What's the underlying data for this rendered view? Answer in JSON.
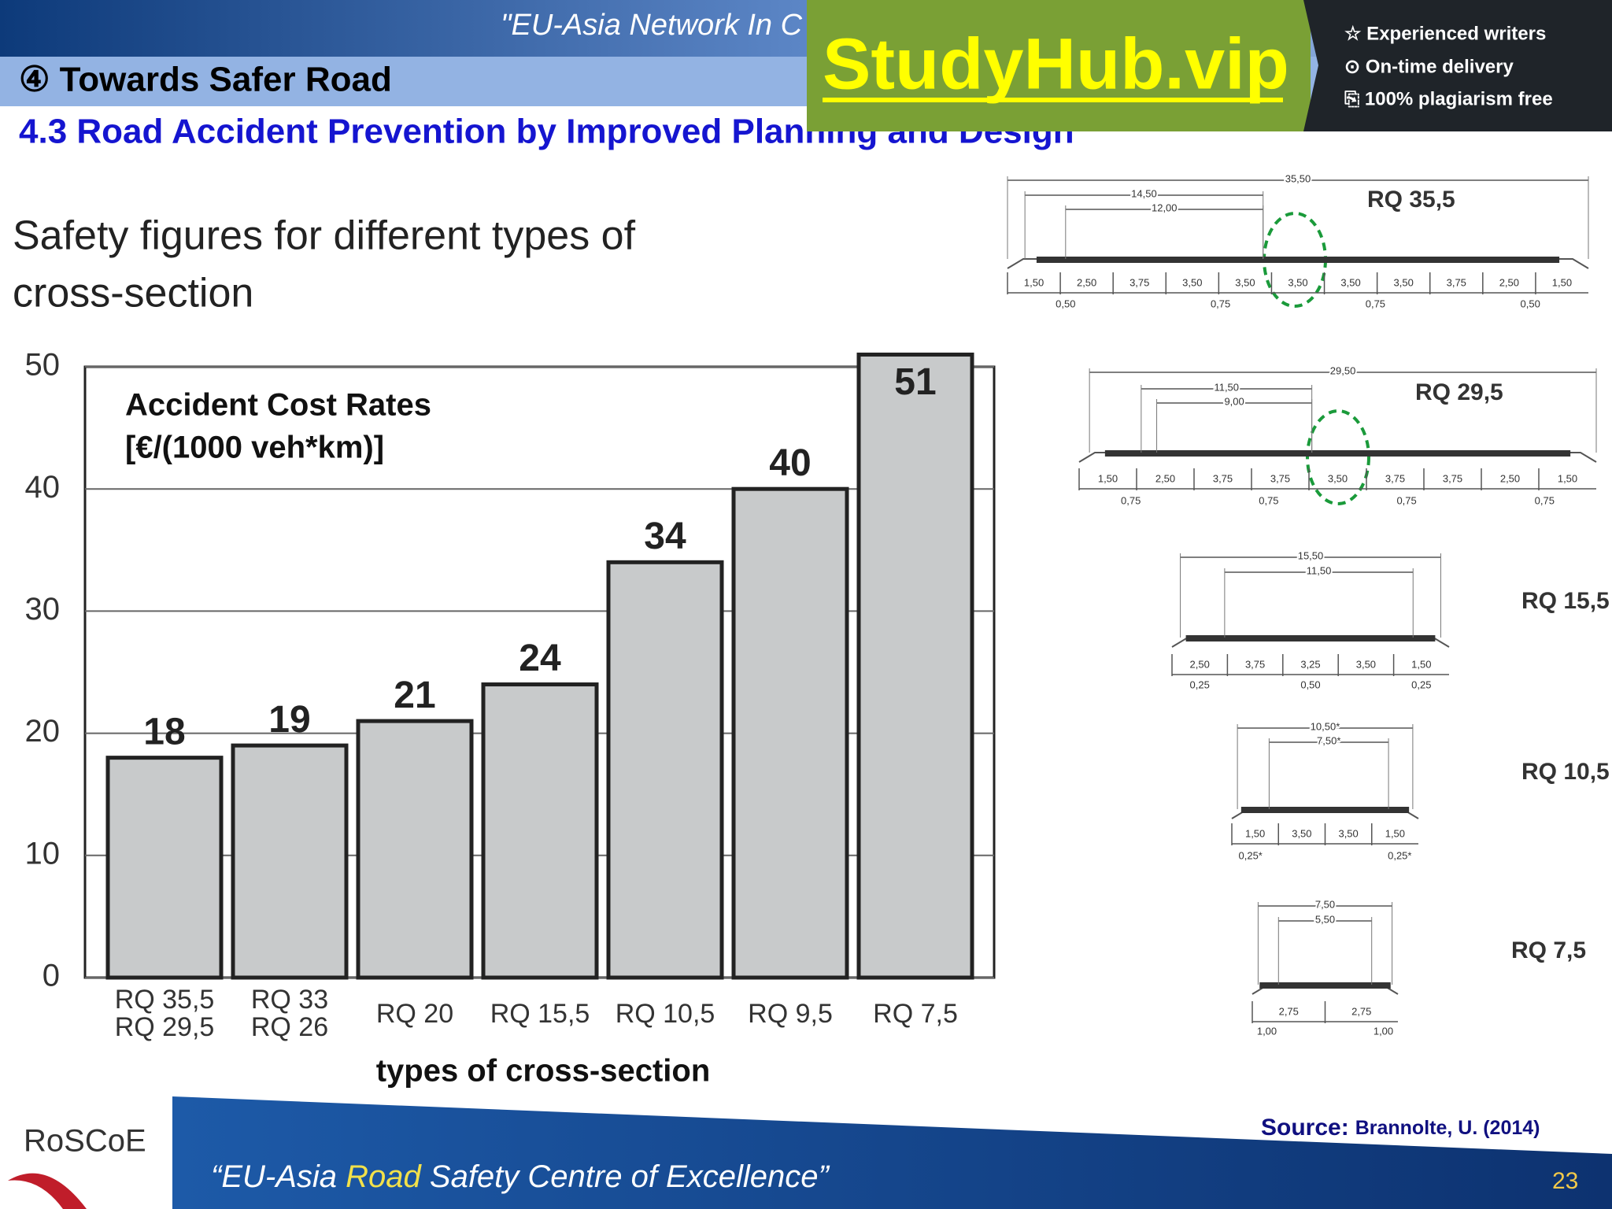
{
  "slide": {
    "header_text": "\"EU-Asia Network In C",
    "section": "④ Towards Safer Road",
    "subtitle": "4.3 Road Accident Prevention by Improved Planning and Design",
    "logo": "RoSCoE",
    "footer": [
      "“EU-Asia ",
      "Road ",
      "Safety Centre of Excellence”"
    ],
    "source_label": "Source:",
    "source_text": "Brannolte, U. (2014)",
    "page": "23"
  },
  "ad": {
    "brand": "StudyHub.vip",
    "features": [
      "☆ Experienced writers",
      "⊙ On-time delivery",
      "⎘ 100% plagiarism free"
    ]
  },
  "chart_data": {
    "type": "bar",
    "title": [
      "Safety figures for different types of",
      "cross-section"
    ],
    "inner_label": [
      "Accident Cost Rates",
      "[€/(1000 veh*km)]"
    ],
    "x_label": "types of cross-section",
    "categories": [
      [
        "RQ 35,5",
        "RQ 29,5"
      ],
      [
        "RQ 33",
        "RQ 26"
      ],
      [
        "RQ 20"
      ],
      [
        "RQ 15,5"
      ],
      [
        "RQ 10,5"
      ],
      [
        "RQ 9,5"
      ],
      [
        "RQ 7,5"
      ]
    ],
    "values": [
      18,
      19,
      21,
      24,
      34,
      40,
      51
    ],
    "color": "#c8cacb",
    "ylim": [
      0,
      50
    ],
    "yticks": [
      0,
      10,
      20,
      30,
      40,
      50
    ],
    "grid": true
  },
  "diagrams": [
    {
      "name": "RQ 35,5",
      "top": [
        "35,50",
        "14,50",
        "12,00"
      ],
      "bottom": [
        "1,50",
        "2,50",
        "3,75",
        "3,50",
        "3,50",
        "3,50",
        "3,50",
        "3,50",
        "3,75",
        "2,50",
        "1,50"
      ],
      "lower": [
        "0,50",
        "0,75",
        "0,75",
        "0,50"
      ]
    },
    {
      "name": "RQ 29,5",
      "top": [
        "29,50",
        "11,50",
        "9,00"
      ],
      "bottom": [
        "1,50",
        "2,50",
        "3,75",
        "3,75",
        "3,50",
        "3,75",
        "3,75",
        "2,50",
        "1,50"
      ],
      "lower": [
        "0,75",
        "0,75",
        "0,75",
        "0,75"
      ]
    },
    {
      "name": "RQ 15,5",
      "top": [
        "15,50",
        "11,50"
      ],
      "bottom": [
        "2,50",
        "3,75",
        "3,25",
        "3,50",
        "1,50"
      ],
      "lower": [
        "0,25",
        "0,50",
        "0,25"
      ]
    },
    {
      "name": "RQ 10,5",
      "top": [
        "10,50*",
        "7,50*"
      ],
      "bottom": [
        "1,50",
        "3,50",
        "3,50",
        "1,50"
      ],
      "lower": [
        "0,25*",
        "0,25*"
      ]
    },
    {
      "name": "RQ 7,5",
      "top": [
        "7,50",
        "5,50"
      ],
      "bottom": [
        "2,75",
        "2,75"
      ],
      "lower": [
        "1,00",
        "1,00"
      ]
    }
  ]
}
